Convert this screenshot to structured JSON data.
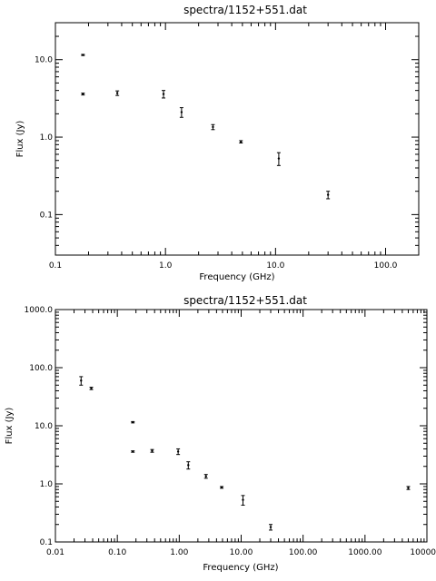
{
  "chart_data": [
    {
      "type": "scatter",
      "title": "spectra/1152+551.dat",
      "xlabel": "Frequency (GHz)",
      "ylabel": "Flux (Jy)",
      "xscale": "log",
      "yscale": "log",
      "xlim": [
        0.1,
        200
      ],
      "ylim": [
        0.03,
        30
      ],
      "grid": false,
      "xticks": [
        {
          "value": 0.1,
          "label": "0.1"
        },
        {
          "value": 1,
          "label": "1.0"
        },
        {
          "value": 10,
          "label": "10.0"
        },
        {
          "value": 100,
          "label": "100.0"
        }
      ],
      "yticks": [
        {
          "value": 0.1,
          "label": "0.1"
        },
        {
          "value": 1,
          "label": "1.0"
        },
        {
          "value": 10,
          "label": "10.0"
        }
      ],
      "points": [
        {
          "x": 0.178,
          "y": 11.5,
          "err": 0.2
        },
        {
          "x": 0.178,
          "y": 3.6,
          "err": 0.1
        },
        {
          "x": 0.365,
          "y": 3.7,
          "err": 0.25
        },
        {
          "x": 0.96,
          "y": 3.6,
          "err": 0.4
        },
        {
          "x": 1.4,
          "y": 2.1,
          "err": 0.3
        },
        {
          "x": 2.7,
          "y": 1.35,
          "err": 0.1
        },
        {
          "x": 4.85,
          "y": 0.87,
          "err": 0.03
        },
        {
          "x": 10.7,
          "y": 0.53,
          "err": 0.1
        },
        {
          "x": 30,
          "y": 0.18,
          "err": 0.02
        }
      ]
    },
    {
      "type": "scatter",
      "title": "spectra/1152+551.dat",
      "xlabel": "Frequency (GHz)",
      "ylabel": "Flux (Jy)",
      "xscale": "log",
      "yscale": "log",
      "xlim": [
        0.01,
        10000
      ],
      "ylim": [
        0.1,
        1000
      ],
      "grid": false,
      "xticks": [
        {
          "value": 0.01,
          "label": "0.01"
        },
        {
          "value": 0.1,
          "label": "0.10"
        },
        {
          "value": 1,
          "label": "1.00"
        },
        {
          "value": 10,
          "label": "10.00"
        },
        {
          "value": 100,
          "label": "100.00"
        },
        {
          "value": 1000,
          "label": "1000.00"
        },
        {
          "value": 10000,
          "label": "10000.0"
        }
      ],
      "yticks": [
        {
          "value": 0.1,
          "label": "0.1"
        },
        {
          "value": 1,
          "label": "1.0"
        },
        {
          "value": 10,
          "label": "10.0"
        },
        {
          "value": 100,
          "label": "100.0"
        },
        {
          "value": 1000,
          "label": "1000.0"
        }
      ],
      "points": [
        {
          "x": 0.026,
          "y": 60,
          "err": 10
        },
        {
          "x": 0.038,
          "y": 44,
          "err": 2
        },
        {
          "x": 0.178,
          "y": 11.5,
          "err": 0.3
        },
        {
          "x": 0.178,
          "y": 3.6,
          "err": 0.1
        },
        {
          "x": 0.365,
          "y": 3.7,
          "err": 0.2
        },
        {
          "x": 0.96,
          "y": 3.6,
          "err": 0.4
        },
        {
          "x": 1.4,
          "y": 2.1,
          "err": 0.3
        },
        {
          "x": 2.7,
          "y": 1.35,
          "err": 0.1
        },
        {
          "x": 4.85,
          "y": 0.87,
          "err": 0.03
        },
        {
          "x": 10.7,
          "y": 0.53,
          "err": 0.1
        },
        {
          "x": 30,
          "y": 0.18,
          "err": 0.02
        },
        {
          "x": 5000,
          "y": 0.85,
          "err": 0.05
        }
      ]
    }
  ]
}
